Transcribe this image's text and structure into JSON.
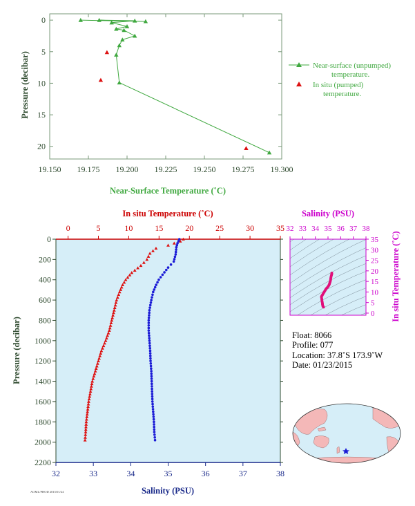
{
  "colors": {
    "green": "#3fa83f",
    "red": "#dd1111",
    "blue": "#1b1bd6",
    "magenta": "#e0107a",
    "panel": "#d6eef8",
    "axis_dark": "#2e4a2e"
  },
  "chart_data": [
    {
      "type": "line",
      "name": "near-surface-profile",
      "xlabel": "Near-Surface Temperature (˚C)",
      "ylabel": "Pressure (decibar)",
      "xlim": [
        19.15,
        19.3
      ],
      "ylim": [
        22,
        -1
      ],
      "xticks": [
        "19.150",
        "19.175",
        "19.200",
        "19.225",
        "19.250",
        "19.275",
        "19.300"
      ],
      "yticks": [
        "0",
        "5",
        "10",
        "15",
        "20"
      ],
      "legend_position": "right",
      "legend": {
        "unpumped_line1": "Near-surface (unpumped)",
        "unpumped_line2": "temperature.",
        "pumped_line1": "In situ (pumped)",
        "pumped_line2": "temperature."
      },
      "series": [
        {
          "name": "Near-surface (unpumped) temperature.",
          "marker": "triangle",
          "connected": true,
          "points": [
            [
              19.17,
              0.0
            ],
            [
              19.212,
              0.2
            ],
            [
              19.182,
              0.0
            ],
            [
              19.205,
              0.1
            ],
            [
              19.19,
              0.4
            ],
            [
              19.2,
              1.0
            ],
            [
              19.193,
              1.4
            ],
            [
              19.198,
              1.6
            ],
            [
              19.205,
              2.5
            ],
            [
              19.197,
              3.1
            ],
            [
              19.195,
              4.0
            ],
            [
              19.193,
              5.5
            ],
            [
              19.195,
              9.9
            ],
            [
              19.292,
              21.0
            ]
          ]
        },
        {
          "name": "In situ (pumped) temperature.",
          "marker": "triangle",
          "connected": false,
          "points": [
            [
              19.187,
              5.1
            ],
            [
              19.183,
              9.5
            ],
            [
              19.277,
              20.3
            ]
          ]
        }
      ]
    },
    {
      "type": "scatter",
      "name": "deep-profile",
      "ylabel": "Pressure (decibar)",
      "top_xlabel": "In situ Temperature (˚C)",
      "bottom_xlabel": "Salinity (PSU)",
      "temp_xlim": [
        -2,
        35
      ],
      "sal_xlim": [
        32,
        38
      ],
      "ylim": [
        2200,
        0
      ],
      "temp_ticks": [
        "0",
        "5",
        "10",
        "15",
        "20",
        "25",
        "30",
        "35"
      ],
      "sal_ticks": [
        "32",
        "33",
        "34",
        "35",
        "36",
        "37",
        "38"
      ],
      "pressure_ticks": [
        "0",
        "200",
        "400",
        "600",
        "800",
        "1000",
        "1200",
        "1400",
        "1600",
        "1800",
        "2000",
        "2200"
      ],
      "series": [
        {
          "name": "In situ Temperature",
          "axis": "temperature",
          "marker": "triangle",
          "profile": [
            [
              19.0,
              0
            ],
            [
              18.5,
              20
            ],
            [
              16.5,
              60
            ],
            [
              14.5,
              90
            ],
            [
              13.5,
              140
            ],
            [
              13.0,
              200
            ],
            [
              12.0,
              260
            ],
            [
              10.5,
              330
            ],
            [
              9.5,
              400
            ],
            [
              9.0,
              450
            ],
            [
              8.5,
              520
            ],
            [
              8.0,
              600
            ],
            [
              7.6,
              700
            ],
            [
              7.2,
              800
            ],
            [
              6.8,
              900
            ],
            [
              6.2,
              1000
            ],
            [
              5.5,
              1100
            ],
            [
              5.0,
              1200
            ],
            [
              4.5,
              1300
            ],
            [
              4.0,
              1400
            ],
            [
              3.7,
              1500
            ],
            [
              3.4,
              1600
            ],
            [
              3.2,
              1700
            ],
            [
              3.0,
              1800
            ],
            [
              2.9,
              1900
            ],
            [
              2.8,
              1980
            ]
          ]
        },
        {
          "name": "Salinity",
          "axis": "salinity",
          "marker": "circle",
          "profile": [
            [
              35.3,
              0
            ],
            [
              35.25,
              40
            ],
            [
              35.22,
              80
            ],
            [
              35.2,
              150
            ],
            [
              35.15,
              220
            ],
            [
              35.0,
              280
            ],
            [
              34.85,
              350
            ],
            [
              34.75,
              400
            ],
            [
              34.68,
              450
            ],
            [
              34.6,
              520
            ],
            [
              34.55,
              600
            ],
            [
              34.5,
              700
            ],
            [
              34.48,
              800
            ],
            [
              34.48,
              900
            ],
            [
              34.5,
              1000
            ],
            [
              34.52,
              1100
            ],
            [
              34.53,
              1200
            ],
            [
              34.55,
              1300
            ],
            [
              34.56,
              1400
            ],
            [
              34.57,
              1500
            ],
            [
              34.58,
              1600
            ],
            [
              34.6,
              1700
            ],
            [
              34.62,
              1800
            ],
            [
              34.63,
              1900
            ],
            [
              34.65,
              1980
            ]
          ]
        }
      ]
    },
    {
      "type": "scatter",
      "name": "ts-diagram",
      "xlabel": "Salinity (PSU)",
      "ylabel": "In situ Temperature (˚C)",
      "xlim": [
        32,
        38
      ],
      "ylim": [
        -1,
        35
      ],
      "xticks": [
        "32",
        "33",
        "34",
        "35",
        "36",
        "37",
        "38"
      ],
      "yticks": [
        "0",
        "5",
        "10",
        "15",
        "20",
        "25",
        "30",
        "35"
      ],
      "series": [
        {
          "name": "T-S",
          "marker": "circle",
          "profile": [
            [
              34.65,
              2.8
            ],
            [
              34.6,
              3.2
            ],
            [
              34.57,
              4.0
            ],
            [
              34.55,
              5.0
            ],
            [
              34.52,
              6.0
            ],
            [
              34.5,
              7.0
            ],
            [
              34.48,
              7.8
            ],
            [
              34.55,
              8.5
            ],
            [
              34.65,
              9.5
            ],
            [
              34.75,
              10.5
            ],
            [
              34.85,
              11.5
            ],
            [
              35.0,
              12.5
            ],
            [
              35.1,
              13.5
            ],
            [
              35.15,
              14.5
            ],
            [
              35.2,
              15.5
            ],
            [
              35.22,
              16.5
            ],
            [
              35.25,
              17.5
            ],
            [
              35.3,
              18.5
            ],
            [
              35.3,
              19.0
            ]
          ]
        }
      ]
    }
  ],
  "float_info": {
    "float": "Float:  8066",
    "profile": "Profile:  077",
    "location": "Location:  37.8˚S  173.9˚W",
    "date": "Date:  01/23/2015"
  },
  "footer_note": "AOML/PHOD 2015/01/24",
  "map": {
    "marker_lon": -173.9,
    "marker_lat": -37.8
  }
}
